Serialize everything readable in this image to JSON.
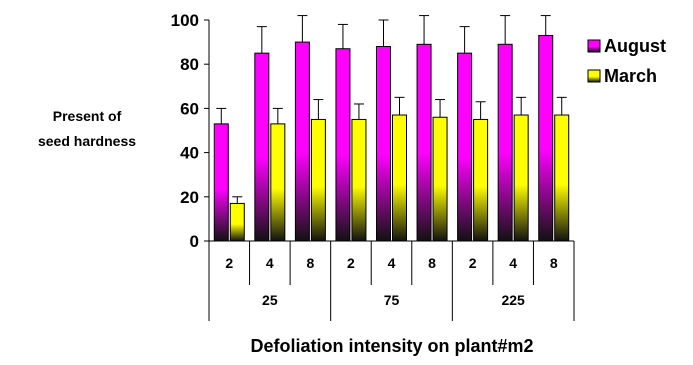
{
  "chart_data": {
    "type": "bar",
    "title": "",
    "xlabel": "Defoliation intensity on plant#m2",
    "ylabel_lines": [
      "Present of",
      "seed hardness"
    ],
    "ylim": [
      0,
      100
    ],
    "yticks": [
      0,
      20,
      40,
      60,
      80,
      100
    ],
    "grid": false,
    "legend_position": "right",
    "group_labels": [
      "25",
      "75",
      "225"
    ],
    "categories": [
      "2",
      "4",
      "8",
      "2",
      "4",
      "8",
      "2",
      "4",
      "8"
    ],
    "series": [
      {
        "name": "August",
        "color": "#ff00ff",
        "values": [
          53,
          85,
          90,
          87,
          88,
          89,
          85,
          89,
          93
        ],
        "error": [
          7,
          12,
          12,
          11,
          12,
          13,
          12,
          13,
          10
        ]
      },
      {
        "name": "March",
        "color": "#ffff00",
        "values": [
          17,
          53,
          55,
          55,
          57,
          56,
          55,
          57,
          57
        ],
        "error": [
          3,
          7,
          9,
          7,
          8,
          8,
          8,
          8,
          8
        ]
      }
    ]
  }
}
